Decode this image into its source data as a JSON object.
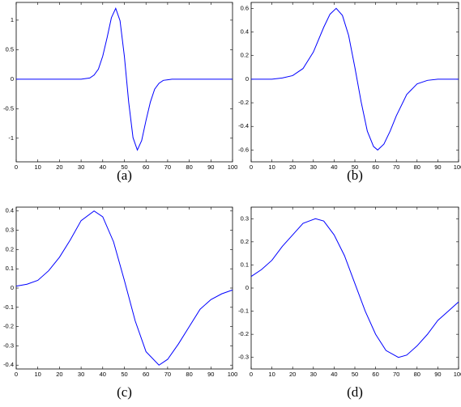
{
  "chart_data": [
    {
      "type": "line",
      "caption": "(a)",
      "color": "#0000ff",
      "x": [
        0,
        2,
        4,
        6,
        8,
        10,
        12,
        14,
        16,
        18,
        20,
        22,
        24,
        26,
        28,
        30,
        32,
        34,
        36,
        38,
        40,
        42,
        44,
        46,
        48,
        50,
        52,
        54,
        56,
        58,
        60,
        62,
        64,
        66,
        68,
        70,
        72,
        74,
        76,
        78,
        80,
        82,
        84,
        86,
        88,
        90,
        92,
        94,
        96,
        98,
        100
      ],
      "values": [
        0,
        0,
        0,
        0,
        0,
        0,
        0,
        0,
        0,
        0,
        0,
        0,
        0,
        0,
        0,
        0,
        0.01,
        0.02,
        0.07,
        0.17,
        0.39,
        0.7,
        1.04,
        1.2,
        0.99,
        0.39,
        -0.39,
        -0.99,
        -1.2,
        -1.04,
        -0.7,
        -0.39,
        -0.17,
        -0.07,
        -0.02,
        -0.01,
        0,
        0,
        0,
        0,
        0,
        0,
        0,
        0,
        0,
        0,
        0,
        0,
        0,
        0,
        0
      ],
      "xlim": [
        0,
        100
      ],
      "xticks": [
        0,
        10,
        20,
        30,
        40,
        50,
        60,
        70,
        80,
        90,
        100
      ],
      "ylim": [
        -1.4,
        1.3
      ],
      "yticks": [
        -1,
        -0.5,
        0,
        0.5,
        1
      ]
    },
    {
      "type": "line",
      "caption": "(b)",
      "color": "#0000ff",
      "x": [
        0,
        5,
        10,
        15,
        20,
        25,
        30,
        35,
        38,
        41,
        44,
        47,
        50,
        53,
        56,
        59,
        61,
        64,
        67,
        70,
        75,
        80,
        85,
        90,
        95,
        100
      ],
      "values": [
        0,
        0,
        0,
        0.01,
        0.03,
        0.09,
        0.23,
        0.44,
        0.55,
        0.6,
        0.54,
        0.37,
        0.1,
        -0.19,
        -0.44,
        -0.57,
        -0.6,
        -0.55,
        -0.44,
        -0.31,
        -0.13,
        -0.04,
        -0.01,
        0,
        0,
        0
      ],
      "xlim": [
        0,
        100
      ],
      "xticks": [
        0,
        10,
        20,
        30,
        40,
        50,
        60,
        70,
        80,
        90,
        100
      ],
      "ylim": [
        -0.7,
        0.65
      ],
      "yticks": [
        -0.6,
        -0.4,
        -0.2,
        0,
        0.2,
        0.4,
        0.6
      ]
    },
    {
      "type": "line",
      "caption": "(c)",
      "color": "#0000ff",
      "x": [
        0,
        5,
        10,
        15,
        20,
        25,
        30,
        36,
        40,
        45,
        50,
        55,
        60,
        66,
        70,
        75,
        80,
        85,
        90,
        95,
        100
      ],
      "values": [
        0.01,
        0.02,
        0.04,
        0.09,
        0.16,
        0.25,
        0.35,
        0.4,
        0.37,
        0.24,
        0.04,
        -0.17,
        -0.33,
        -0.4,
        -0.37,
        -0.29,
        -0.2,
        -0.11,
        -0.06,
        -0.03,
        -0.01
      ],
      "xlim": [
        0,
        100
      ],
      "xticks": [
        0,
        10,
        20,
        30,
        40,
        50,
        60,
        70,
        80,
        90,
        100
      ],
      "ylim": [
        -0.42,
        0.42
      ],
      "yticks": [
        -0.4,
        -0.3,
        -0.2,
        -0.1,
        0,
        0.1,
        0.2,
        0.3,
        0.4
      ]
    },
    {
      "type": "line",
      "caption": "(d)",
      "color": "#0000ff",
      "x": [
        0,
        5,
        10,
        15,
        20,
        25,
        31,
        35,
        40,
        45,
        50,
        55,
        60,
        65,
        71,
        75,
        80,
        85,
        90,
        95,
        100
      ],
      "values": [
        0.05,
        0.08,
        0.12,
        0.18,
        0.23,
        0.28,
        0.3,
        0.29,
        0.23,
        0.14,
        0.02,
        -0.1,
        -0.2,
        -0.27,
        -0.3,
        -0.29,
        -0.25,
        -0.2,
        -0.14,
        -0.1,
        -0.06
      ],
      "xlim": [
        0,
        100
      ],
      "xticks": [
        0,
        10,
        20,
        30,
        40,
        50,
        60,
        70,
        80,
        90,
        100
      ],
      "ylim": [
        -0.35,
        0.35
      ],
      "yticks": [
        -0.3,
        -0.2,
        -0.1,
        0,
        0.1,
        0.2,
        0.3
      ]
    }
  ]
}
